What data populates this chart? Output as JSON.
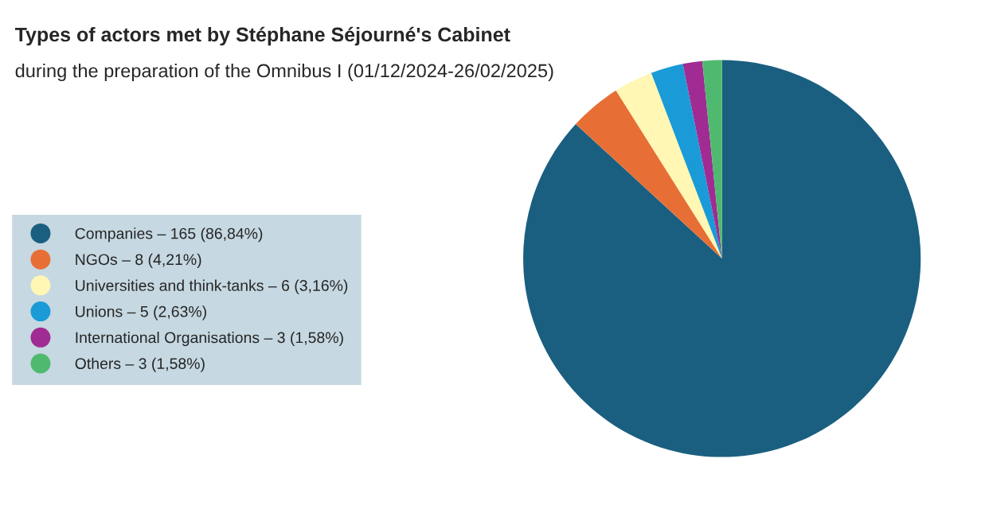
{
  "chart_data": {
    "type": "pie",
    "title": "Types of actors met by Stéphane Séjourné's Cabinet",
    "subtitle": "during the preparation of the Omnibus I (01/12/2024-26/02/2025)",
    "categories": [
      "Companies – 165 (86,84%)",
      "NGOs – 8 (4,21%)",
      "Universities and think-tanks – 6 (3,16%)",
      "Unions – 5 (2,63%)",
      "International Organisations – 3 (1,58%)",
      "Others – 3 (1,58%)"
    ],
    "values": [
      86.84,
      4.21,
      3.16,
      2.63,
      1.58,
      1.58
    ],
    "colors": [
      "#1a5f80",
      "#e76f35",
      "#fff7b3",
      "#1a9bd7",
      "#a02b93",
      "#4fba6f"
    ],
    "legend": "left"
  }
}
